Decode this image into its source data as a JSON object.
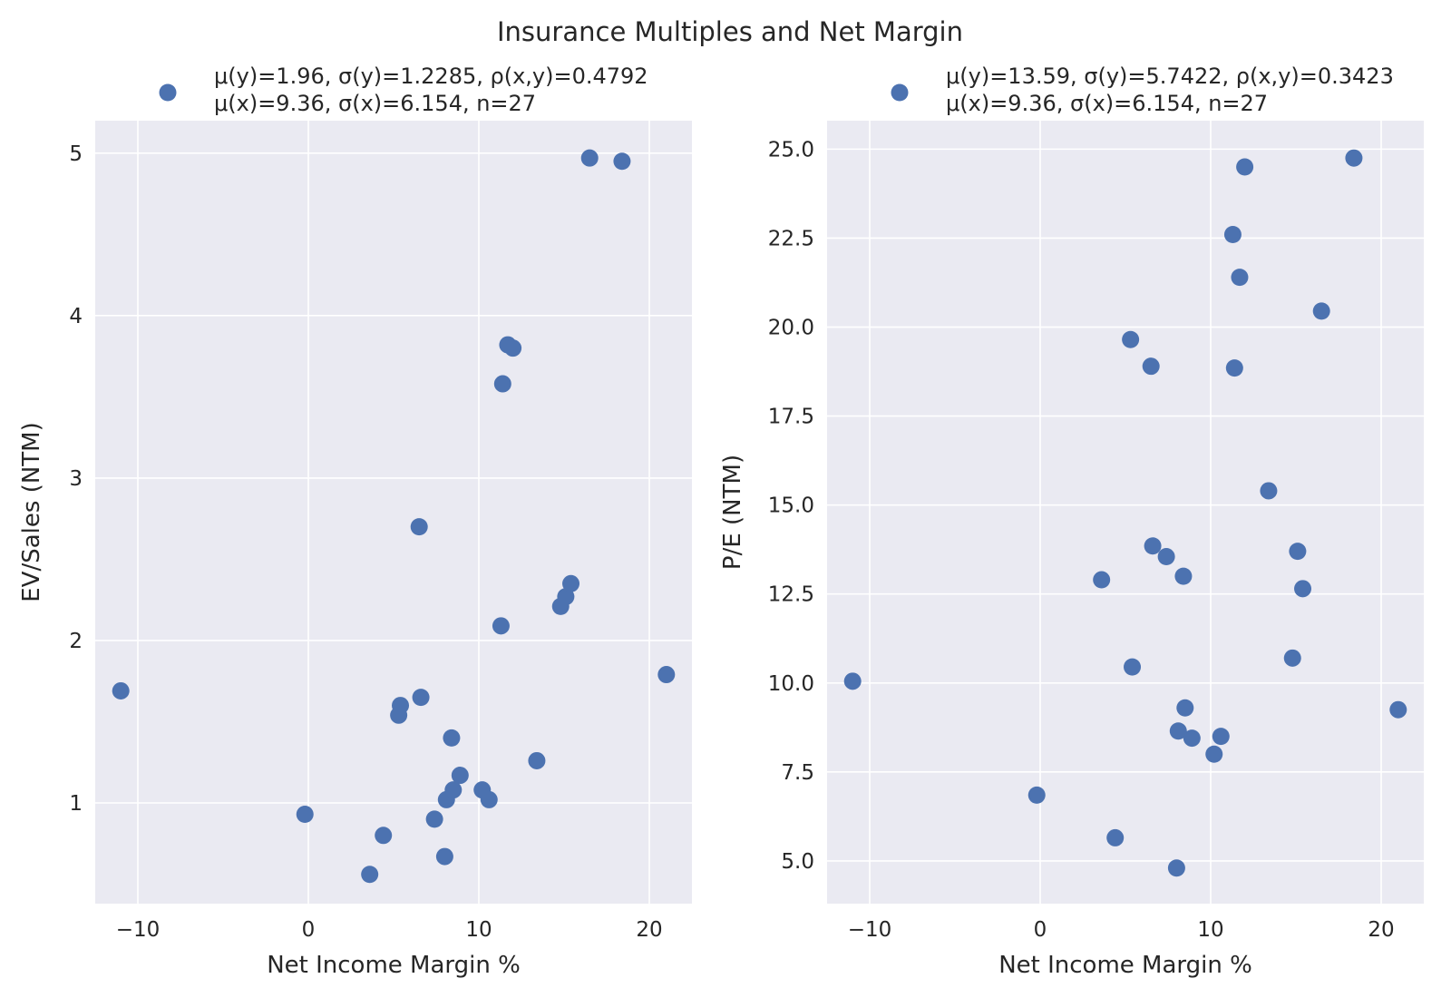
{
  "title": "Insurance Multiples and Net Margin",
  "colors": {
    "points": "#4c72b0",
    "plot_background": "#eaeaf2",
    "grid": "#ffffff"
  },
  "chart_data": [
    {
      "type": "scatter",
      "xlabel": "Net Income Margin %",
      "ylabel": "EV/Sales (NTM)",
      "xlim": [
        -12.5,
        22.5
      ],
      "ylim": [
        0.38,
        5.2
      ],
      "xticks": [
        "−10",
        "0",
        "10",
        "20"
      ],
      "xtick_values": [
        -10,
        0,
        10,
        20
      ],
      "yticks": [
        "1",
        "2",
        "3",
        "4",
        "5"
      ],
      "ytick_values": [
        1,
        2,
        3,
        4,
        5
      ],
      "grid": true,
      "legend": {
        "placement": "top",
        "line1": "μ(y)=1.96, σ(y)=1.2285, ρ(x,y)=0.4792",
        "line2": "μ(x)=9.36, σ(x)=6.154, n=27"
      },
      "points": [
        {
          "x": -11.0,
          "y": 1.69
        },
        {
          "x": -0.2,
          "y": 0.93
        },
        {
          "x": 3.6,
          "y": 0.56
        },
        {
          "x": 4.4,
          "y": 0.8
        },
        {
          "x": 5.3,
          "y": 1.54
        },
        {
          "x": 5.4,
          "y": 1.6
        },
        {
          "x": 6.5,
          "y": 2.7
        },
        {
          "x": 6.6,
          "y": 1.65
        },
        {
          "x": 7.4,
          "y": 0.9
        },
        {
          "x": 8.0,
          "y": 0.67
        },
        {
          "x": 8.1,
          "y": 1.02
        },
        {
          "x": 8.4,
          "y": 1.4
        },
        {
          "x": 8.5,
          "y": 1.08
        },
        {
          "x": 8.9,
          "y": 1.17
        },
        {
          "x": 10.2,
          "y": 1.08
        },
        {
          "x": 10.6,
          "y": 1.02
        },
        {
          "x": 11.3,
          "y": 2.09
        },
        {
          "x": 11.4,
          "y": 3.58
        },
        {
          "x": 11.7,
          "y": 3.82
        },
        {
          "x": 12.0,
          "y": 3.8
        },
        {
          "x": 13.4,
          "y": 1.26
        },
        {
          "x": 14.8,
          "y": 2.21
        },
        {
          "x": 15.1,
          "y": 2.27
        },
        {
          "x": 15.4,
          "y": 2.35
        },
        {
          "x": 16.5,
          "y": 4.97
        },
        {
          "x": 18.4,
          "y": 4.95
        },
        {
          "x": 21.0,
          "y": 1.79
        }
      ]
    },
    {
      "type": "scatter",
      "xlabel": "Net Income Margin %",
      "ylabel": "P/E (NTM)",
      "xlim": [
        -12.5,
        22.5
      ],
      "ylim": [
        3.8,
        25.8
      ],
      "xticks": [
        "−10",
        "0",
        "10",
        "20"
      ],
      "xtick_values": [
        -10,
        0,
        10,
        20
      ],
      "yticks": [
        "5.0",
        "7.5",
        "10.0",
        "12.5",
        "15.0",
        "17.5",
        "20.0",
        "22.5",
        "25.0"
      ],
      "ytick_values": [
        5,
        7.5,
        10,
        12.5,
        15,
        17.5,
        20,
        22.5,
        25
      ],
      "grid": true,
      "legend": {
        "placement": "top",
        "line1": "μ(y)=13.59, σ(y)=5.7422, ρ(x,y)=0.3423",
        "line2": "μ(x)=9.36, σ(x)=6.154, n=27"
      },
      "points": [
        {
          "x": -11.0,
          "y": 10.05
        },
        {
          "x": -0.2,
          "y": 6.85
        },
        {
          "x": 3.6,
          "y": 12.9
        },
        {
          "x": 4.4,
          "y": 5.65
        },
        {
          "x": 5.3,
          "y": 19.65
        },
        {
          "x": 5.4,
          "y": 10.45
        },
        {
          "x": 6.5,
          "y": 18.9
        },
        {
          "x": 6.6,
          "y": 13.85
        },
        {
          "x": 7.4,
          "y": 13.55
        },
        {
          "x": 8.0,
          "y": 4.8
        },
        {
          "x": 8.1,
          "y": 8.65
        },
        {
          "x": 8.4,
          "y": 13.0
        },
        {
          "x": 8.5,
          "y": 9.3
        },
        {
          "x": 8.9,
          "y": 8.45
        },
        {
          "x": 10.2,
          "y": 8.0
        },
        {
          "x": 10.6,
          "y": 8.5
        },
        {
          "x": 11.3,
          "y": 22.6
        },
        {
          "x": 11.4,
          "y": 18.85
        },
        {
          "x": 11.7,
          "y": 21.4
        },
        {
          "x": 12.0,
          "y": 24.5
        },
        {
          "x": 13.4,
          "y": 15.4
        },
        {
          "x": 14.8,
          "y": 10.7
        },
        {
          "x": 15.1,
          "y": 13.7
        },
        {
          "x": 15.4,
          "y": 12.65
        },
        {
          "x": 16.5,
          "y": 20.45
        },
        {
          "x": 18.4,
          "y": 24.75
        },
        {
          "x": 21.0,
          "y": 9.25
        }
      ]
    }
  ]
}
